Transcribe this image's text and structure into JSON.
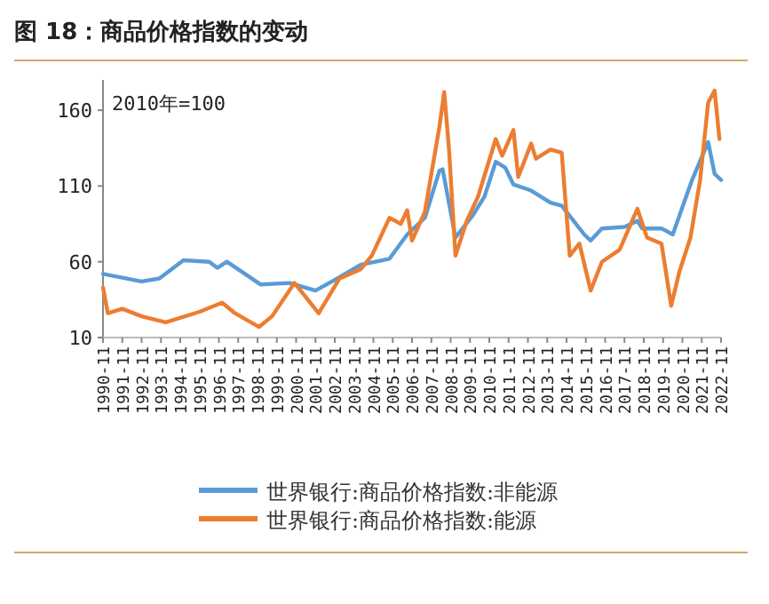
{
  "chart_data": {
    "type": "line",
    "title": "图 18：商品价格指数的变动",
    "annotations": [
      "2010年=100"
    ],
    "xlim": [
      "1990-11",
      "2022-11"
    ],
    "xticks": [
      "1990-11",
      "1991-11",
      "1992-11",
      "1993-11",
      "1994-11",
      "1995-11",
      "1996-11",
      "1997-11",
      "1998-11",
      "1999-11",
      "2000-11",
      "2001-11",
      "2002-11",
      "2003-11",
      "2004-11",
      "2005-11",
      "2006-11",
      "2007-11",
      "2008-11",
      "2009-11",
      "2010-11",
      "2011-11",
      "2012-11",
      "2013-11",
      "2014-11",
      "2015-11",
      "2016-11",
      "2017-11",
      "2018-11",
      "2019-11",
      "2020-11",
      "2021-11",
      "2022-11"
    ],
    "ylim": [
      10,
      180
    ],
    "yticks": [
      10,
      60,
      110,
      160
    ],
    "grid": false,
    "legend": "bottom",
    "line_style": "solid",
    "marker": "none",
    "series": [
      {
        "name": "世界银行:商品价格指数:非能源",
        "color": "#5b9bd5",
        "x": [
          "1990-11",
          "1992-11",
          "1993-10",
          "1995-01",
          "1996-05",
          "1996-10",
          "1997-04",
          "1999-01",
          "2000-07",
          "2001-11",
          "2002-11",
          "2004-03",
          "2005-09",
          "2006-08",
          "2007-07",
          "2008-04",
          "2008-06",
          "2009-02",
          "2010-01",
          "2010-08",
          "2011-03",
          "2011-09",
          "2012-02",
          "2013-01",
          "2014-01",
          "2014-08",
          "2015-10",
          "2016-02",
          "2016-09",
          "2017-11",
          "2018-07",
          "2018-10",
          "2019-10",
          "2020-05",
          "2021-05",
          "2022-03",
          "2022-07",
          "2022-11"
        ],
        "values": [
          52,
          47,
          49,
          61,
          60,
          56,
          60,
          45,
          46,
          41,
          48,
          58,
          62,
          78,
          89,
          120,
          121,
          76,
          91,
          103,
          126,
          122,
          111,
          107,
          99,
          97,
          78,
          74,
          82,
          83,
          87,
          82,
          82,
          78,
          114,
          139,
          118,
          114
        ]
      },
      {
        "name": "世界银行:商品价格指数:能源",
        "color": "#ed7d31",
        "x": [
          "1990-11",
          "1991-02",
          "1991-11",
          "1992-11",
          "1994-02",
          "1995-11",
          "1997-01",
          "1997-09",
          "1998-12",
          "1999-08",
          "2000-10",
          "2002-01",
          "2003-02",
          "2004-03",
          "2004-10",
          "2005-09",
          "2006-04",
          "2006-08",
          "2006-11",
          "2007-07",
          "2008-04",
          "2008-07",
          "2008-10",
          "2009-02",
          "2009-09",
          "2010-04",
          "2011-03",
          "2011-07",
          "2012-02",
          "2012-05",
          "2013-01",
          "2013-04",
          "2014-01",
          "2014-08",
          "2015-01",
          "2015-07",
          "2016-02",
          "2016-09",
          "2017-08",
          "2018-07",
          "2019-01",
          "2019-10",
          "2020-04",
          "2020-09",
          "2021-04",
          "2021-10",
          "2022-03",
          "2022-07",
          "2022-10"
        ],
        "values": [
          43,
          26,
          29,
          24,
          20,
          27,
          33,
          26,
          17,
          24,
          46,
          26,
          49,
          55,
          64,
          89,
          85,
          94,
          74,
          93,
          149,
          172,
          134,
          64,
          87,
          103,
          141,
          130,
          147,
          116,
          138,
          128,
          134,
          132,
          64,
          72,
          41,
          60,
          68,
          95,
          76,
          72,
          31,
          53,
          76,
          114,
          165,
          173,
          141
        ]
      }
    ]
  }
}
